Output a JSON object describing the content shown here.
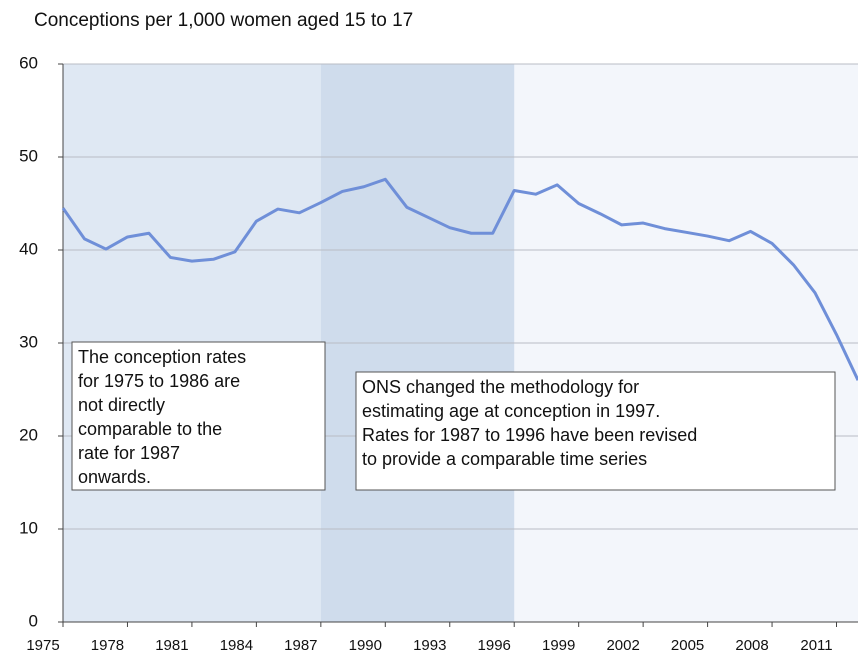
{
  "chart_data": {
    "type": "line",
    "title": "Conceptions per 1,000 women aged 15 to 17",
    "x": [
      1975,
      1976,
      1977,
      1978,
      1979,
      1980,
      1981,
      1982,
      1983,
      1984,
      1985,
      1986,
      1987,
      1988,
      1989,
      1990,
      1991,
      1992,
      1993,
      1994,
      1995,
      1996,
      1997,
      1998,
      1999,
      2000,
      2001,
      2002,
      2003,
      2004,
      2005,
      2006,
      2007,
      2008,
      2009,
      2010,
      2011,
      2012
    ],
    "series": [
      {
        "color": "#6f8fd8",
        "values": [
          44.5,
          41.2,
          40.1,
          41.4,
          41.8,
          39.2,
          38.8,
          39.0,
          39.8,
          43.1,
          44.4,
          44.0,
          45.1,
          46.3,
          46.8,
          47.6,
          44.6,
          43.5,
          42.4,
          41.8,
          41.8,
          46.4,
          46.0,
          47.0,
          45.0,
          43.9,
          42.7,
          42.9,
          42.3,
          41.9,
          41.5,
          41.0,
          42.0,
          40.7,
          38.4,
          35.4,
          30.9,
          26.0
        ]
      }
    ],
    "xlim": [
      1975,
      2012
    ],
    "xticks": [
      1975,
      1978,
      1981,
      1984,
      1987,
      1990,
      1993,
      1996,
      1999,
      2002,
      2005,
      2008,
      2011
    ],
    "ylim": [
      0,
      60
    ],
    "yticks": [
      0,
      10,
      20,
      30,
      40,
      50,
      60
    ],
    "grid": true,
    "background": "#f3f6fb",
    "bands": [
      {
        "from": 1975,
        "to": 1987,
        "color": "#dfe8f3"
      },
      {
        "from": 1987,
        "to": 1996,
        "color": "#cfdcec"
      }
    ],
    "annotations": [
      {
        "lines": [
          "The conception rates",
          "for 1975 to 1986 are",
          "not directly",
          "comparable to the",
          "rate for 1987",
          "onwards."
        ]
      },
      {
        "lines": [
          "ONS changed the methodology for",
          "estimating age at conception in 1997.",
          "Rates for 1987 to 1996 have been revised",
          "to provide a comparable time series"
        ]
      }
    ]
  }
}
